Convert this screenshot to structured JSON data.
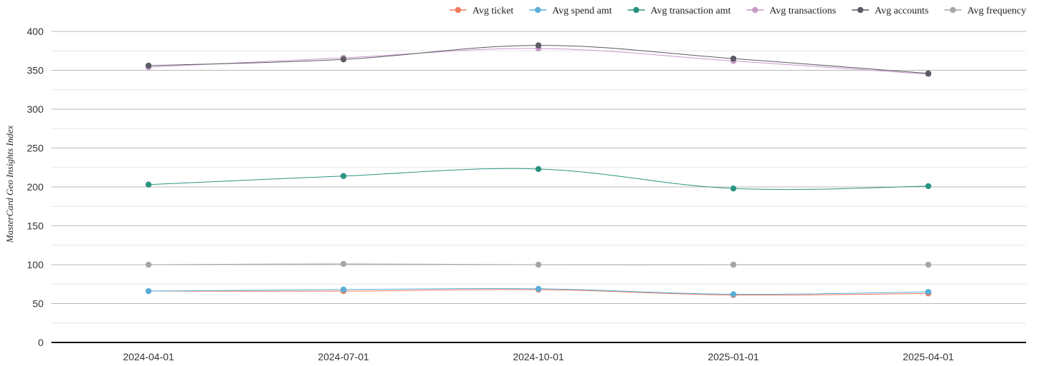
{
  "chart_data": {
    "type": "line",
    "title": "",
    "xlabel": "",
    "ylabel": "MasterCard Geo Insights Index",
    "categories": [
      "2024-04-01",
      "2024-07-01",
      "2024-10-01",
      "2025-01-01",
      "2025-04-01"
    ],
    "ylim": [
      0,
      400
    ],
    "yticks": [
      0,
      50,
      100,
      150,
      200,
      250,
      300,
      350,
      400
    ],
    "grid": true,
    "legend_position": "top-right",
    "series": [
      {
        "name": "Avg ticket",
        "color": "#f07a5e",
        "values": [
          66,
          66,
          68,
          61,
          63
        ]
      },
      {
        "name": "Avg spend amt",
        "color": "#5aaed8",
        "values": [
          66,
          68,
          69,
          62,
          65
        ]
      },
      {
        "name": "Avg transaction amt",
        "color": "#2a9482",
        "values": [
          203,
          214,
          223,
          198,
          201
        ]
      },
      {
        "name": "Avg transactions",
        "color": "#c79bc8",
        "values": [
          354,
          366,
          378,
          362,
          345
        ]
      },
      {
        "name": "Avg accounts",
        "color": "#5b5b63",
        "values": [
          356,
          364,
          382,
          365,
          346
        ]
      },
      {
        "name": "Avg frequency",
        "color": "#a3a6aa",
        "values": [
          100,
          101,
          100,
          100,
          100
        ]
      }
    ]
  }
}
